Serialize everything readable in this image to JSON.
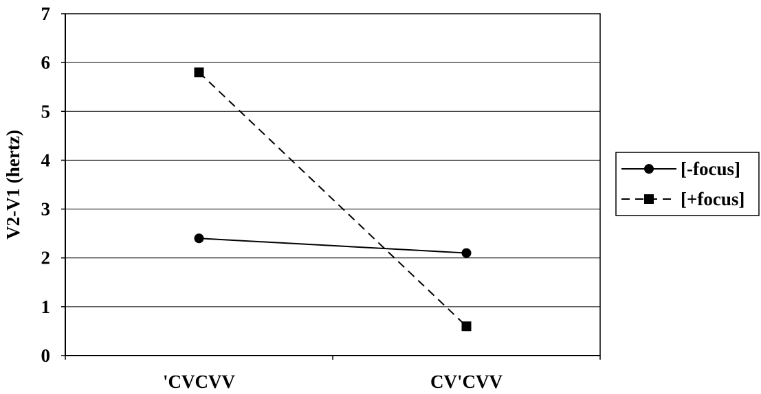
{
  "chart_data": {
    "type": "line",
    "title": "",
    "xlabel": "",
    "ylabel": "V2-V1 (hertz)",
    "categories": [
      "'CVCVV",
      "CV'CVV"
    ],
    "ylim": [
      0,
      7
    ],
    "yticks": [
      0,
      1,
      2,
      3,
      4,
      5,
      6,
      7
    ],
    "grid": true,
    "legend": "right",
    "series": [
      {
        "name": "[-focus]",
        "values": [
          2.4,
          2.1
        ],
        "marker": "circle",
        "line_style": "solid",
        "color": "#000000"
      },
      {
        "name": "[+focus]",
        "values": [
          5.8,
          0.6
        ],
        "marker": "square",
        "line_style": "dashed",
        "color": "#000000"
      }
    ]
  }
}
